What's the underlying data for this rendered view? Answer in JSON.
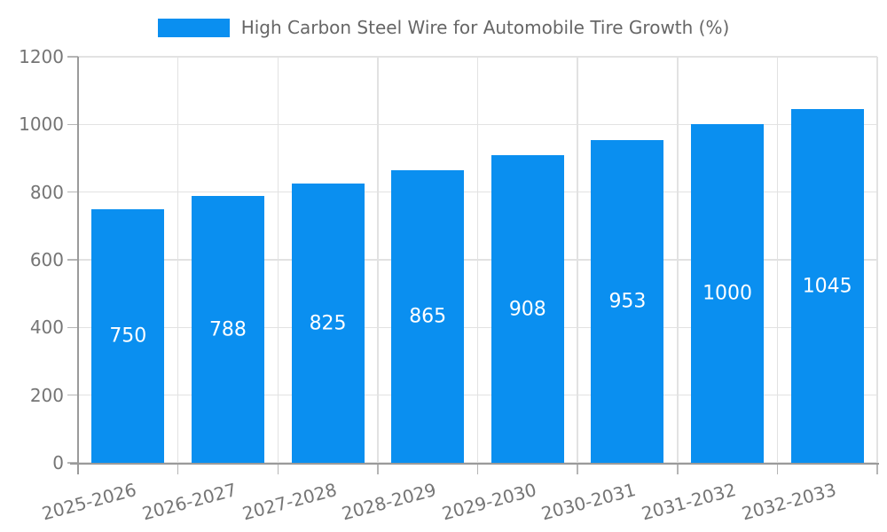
{
  "chart_data": {
    "type": "bar",
    "title": "High Carbon Steel Wire for Automobile Tire Growth (%)",
    "categories": [
      "2025-2026",
      "2026-2027",
      "2027-2028",
      "2028-2029",
      "2029-2030",
      "2030-2031",
      "2031-2032",
      "2032-2033"
    ],
    "values": [
      750,
      788,
      825,
      865,
      908,
      953,
      1000,
      1045
    ],
    "ylim": [
      0,
      1200
    ],
    "yticks": [
      0,
      200,
      400,
      600,
      800,
      1000,
      1200
    ],
    "grid": "on",
    "legend_position": "top",
    "colors": {
      "bar": "#0A8FF0",
      "value_label": "#FFFFFF",
      "grid": "#E2E2E2",
      "axis": "#9A9A9A",
      "tick": "#B5B5B5",
      "tick_label": "#757575",
      "title": "#666666"
    }
  }
}
